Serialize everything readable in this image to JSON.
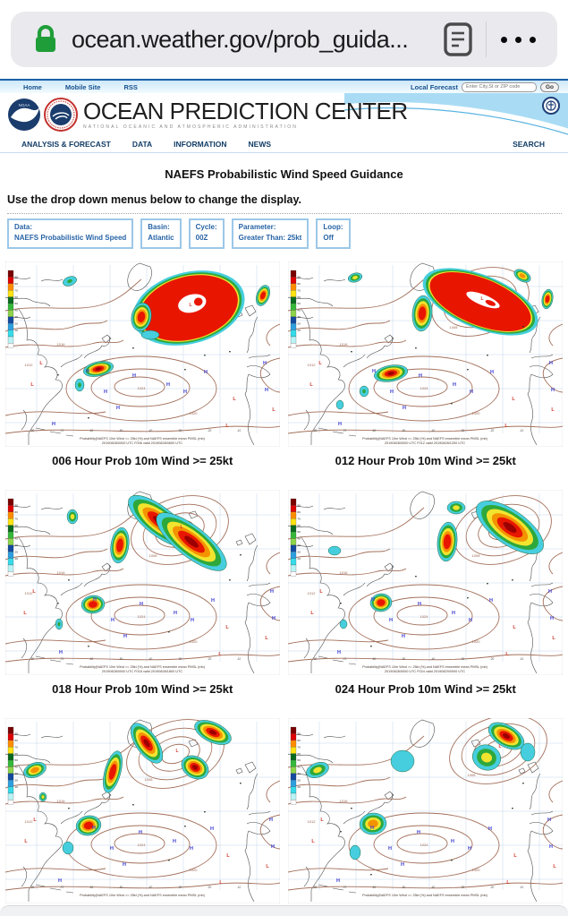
{
  "browser": {
    "url": "ocean.weather.gov/prob_guida...",
    "lock_color": "#1f9d38"
  },
  "topbar": {
    "links": [
      "Home",
      "Mobile Site",
      "RSS"
    ],
    "local_forecast_label": "Local Forecast",
    "search_placeholder": "Enter City,St or ZIP code",
    "go_label": "Go"
  },
  "header": {
    "title": "OCEAN PREDICTION CENTER",
    "subtitle": "NATIONAL OCEANIC AND ATMOSPHERIC ADMINISTRATION"
  },
  "nav": {
    "items": [
      "ANALYSIS & FORECAST",
      "DATA",
      "INFORMATION",
      "NEWS"
    ],
    "search_label": "SEARCH"
  },
  "main": {
    "title": "NAEFS Probabilistic Wind Speed Guidance",
    "instructions": "Use the drop down menus below to change the display.",
    "dropdowns": [
      {
        "label": "Data:",
        "value": "NAEFS Probabilistic Wind Speed"
      },
      {
        "label": "Basin:",
        "value": "Atlantic"
      },
      {
        "label": "Cycle:",
        "value": "00Z"
      },
      {
        "label": "Parameter:",
        "value": "Greater Than: 25kt"
      },
      {
        "label": "Loop:",
        "value": "Off"
      }
    ],
    "maps": [
      {
        "caption": "006 Hour Prob 10m Wind >= 25kt",
        "fineprint": "Probability(NAEFS 10m Wind >= 25kt (%) and NAEFS ensemble mean PMSL (mb)",
        "fineprint2": "20190828/0000 UTC F006 valid 20190828/0600 UTC"
      },
      {
        "caption": "012 Hour Prob 10m Wind >= 25kt",
        "fineprint": "Probability(NAEFS 10m Wind >= 25kt (%) and NAEFS ensemble mean PMSL (mb)",
        "fineprint2": "20190828/0000 UTC F012 valid 20190828/1200 UTC"
      },
      {
        "caption": "018 Hour Prob 10m Wind >= 25kt",
        "fineprint": "Probability(NAEFS 10m Wind >= 25kt (%) and NAEFS ensemble mean PMSL (mb)",
        "fineprint2": "20190828/0000 UTC F018 valid 20190828/1800 UTC"
      },
      {
        "caption": "024 Hour Prob 10m Wind >= 25kt",
        "fineprint": "Probability(NAEFS 10m Wind >= 25kt (%) and NAEFS ensemble mean PMSL (mb)",
        "fineprint2": "20190828/0000 UTC F024 valid 20190829/0000 UTC"
      },
      {
        "caption": "",
        "fineprint": "Probability(NAEFS 10m Wind >= 25kt (%) and NAEFS ensemble mean PMSL (mb)",
        "fineprint2": ""
      },
      {
        "caption": "",
        "fineprint": "Probability(NAEFS 10m Wind >= 25kt (%) and NAEFS ensemble mean PMSL (mb)",
        "fineprint2": ""
      }
    ],
    "colorbar": {
      "labels": [
        "90",
        "80",
        "70",
        "60",
        "50",
        "40",
        "30",
        "20",
        "10"
      ],
      "colors": [
        "#7a0000",
        "#e00000",
        "#ff8c00",
        "#ffe312",
        "#0a6b1f",
        "#35b83a",
        "#8ed44a",
        "#134a9e",
        "#2d9fe0",
        "#35dbe8",
        "#b8f3f5"
      ]
    },
    "lon_labels": [
      "-80",
      "-70",
      "-60",
      "-50",
      "-40",
      "-30",
      "-20",
      "-10"
    ],
    "isobar_labels": [
      "1024",
      "1020",
      "1016",
      "1012",
      "1008"
    ]
  },
  "colors": {
    "link_blue": "#15518f",
    "nav_blue": "#123c66",
    "dropdown_blue": "#2763a5",
    "isobar_brown": "#a3705b",
    "high_marker": "#3b3bd0",
    "low_marker": "#cf3a2e"
  }
}
